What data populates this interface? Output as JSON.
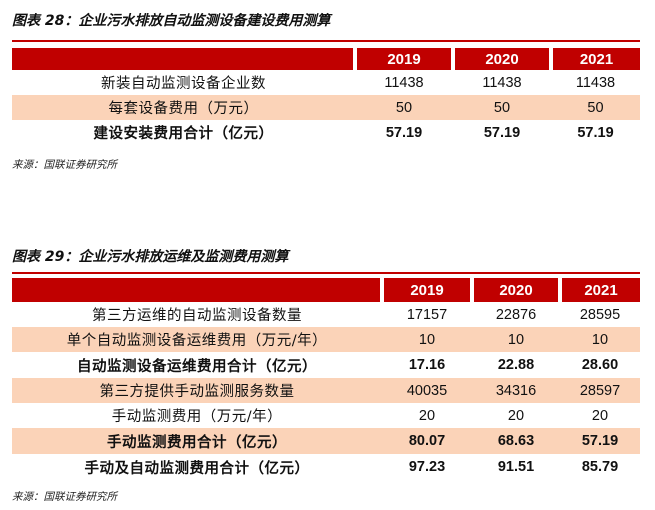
{
  "table1": {
    "title": "图表 28：企业污水排放自动监测设备建设费用测算",
    "years": [
      "2019",
      "2020",
      "2021"
    ],
    "rows": [
      {
        "label": "新装自动监测设备企业数",
        "values": [
          "11438",
          "11438",
          "11438"
        ]
      },
      {
        "label": "每套设备费用（万元）",
        "values": [
          "50",
          "50",
          "50"
        ]
      },
      {
        "label": "建设安装费用合计（亿元）",
        "values": [
          "57.19",
          "57.19",
          "57.19"
        ]
      }
    ],
    "source": "来源：国联证券研究所"
  },
  "table2": {
    "title": "图表 29：企业污水排放运维及监测费用测算",
    "years": [
      "2019",
      "2020",
      "2021"
    ],
    "rows": [
      {
        "label": "第三方运维的自动监测设备数量",
        "values": [
          "17157",
          "22876",
          "28595"
        ]
      },
      {
        "label": "单个自动监测设备运维费用（万元/年）",
        "values": [
          "10",
          "10",
          "10"
        ]
      },
      {
        "label": "自动监测设备运维费用合计（亿元）",
        "values": [
          "17.16",
          "22.88",
          "28.60"
        ]
      },
      {
        "label": "第三方提供手动监测服务数量",
        "values": [
          "40035",
          "34316",
          "28597"
        ]
      },
      {
        "label": "手动监测费用（万元/年）",
        "values": [
          "20",
          "20",
          "20"
        ]
      },
      {
        "label": "手动监测费用合计（亿元）",
        "values": [
          "80.07",
          "68.63",
          "57.19"
        ]
      },
      {
        "label": "手动及自动监测费用合计（亿元）",
        "values": [
          "97.23",
          "91.51",
          "85.79"
        ]
      }
    ],
    "source": "来源：国联证券研究所"
  }
}
